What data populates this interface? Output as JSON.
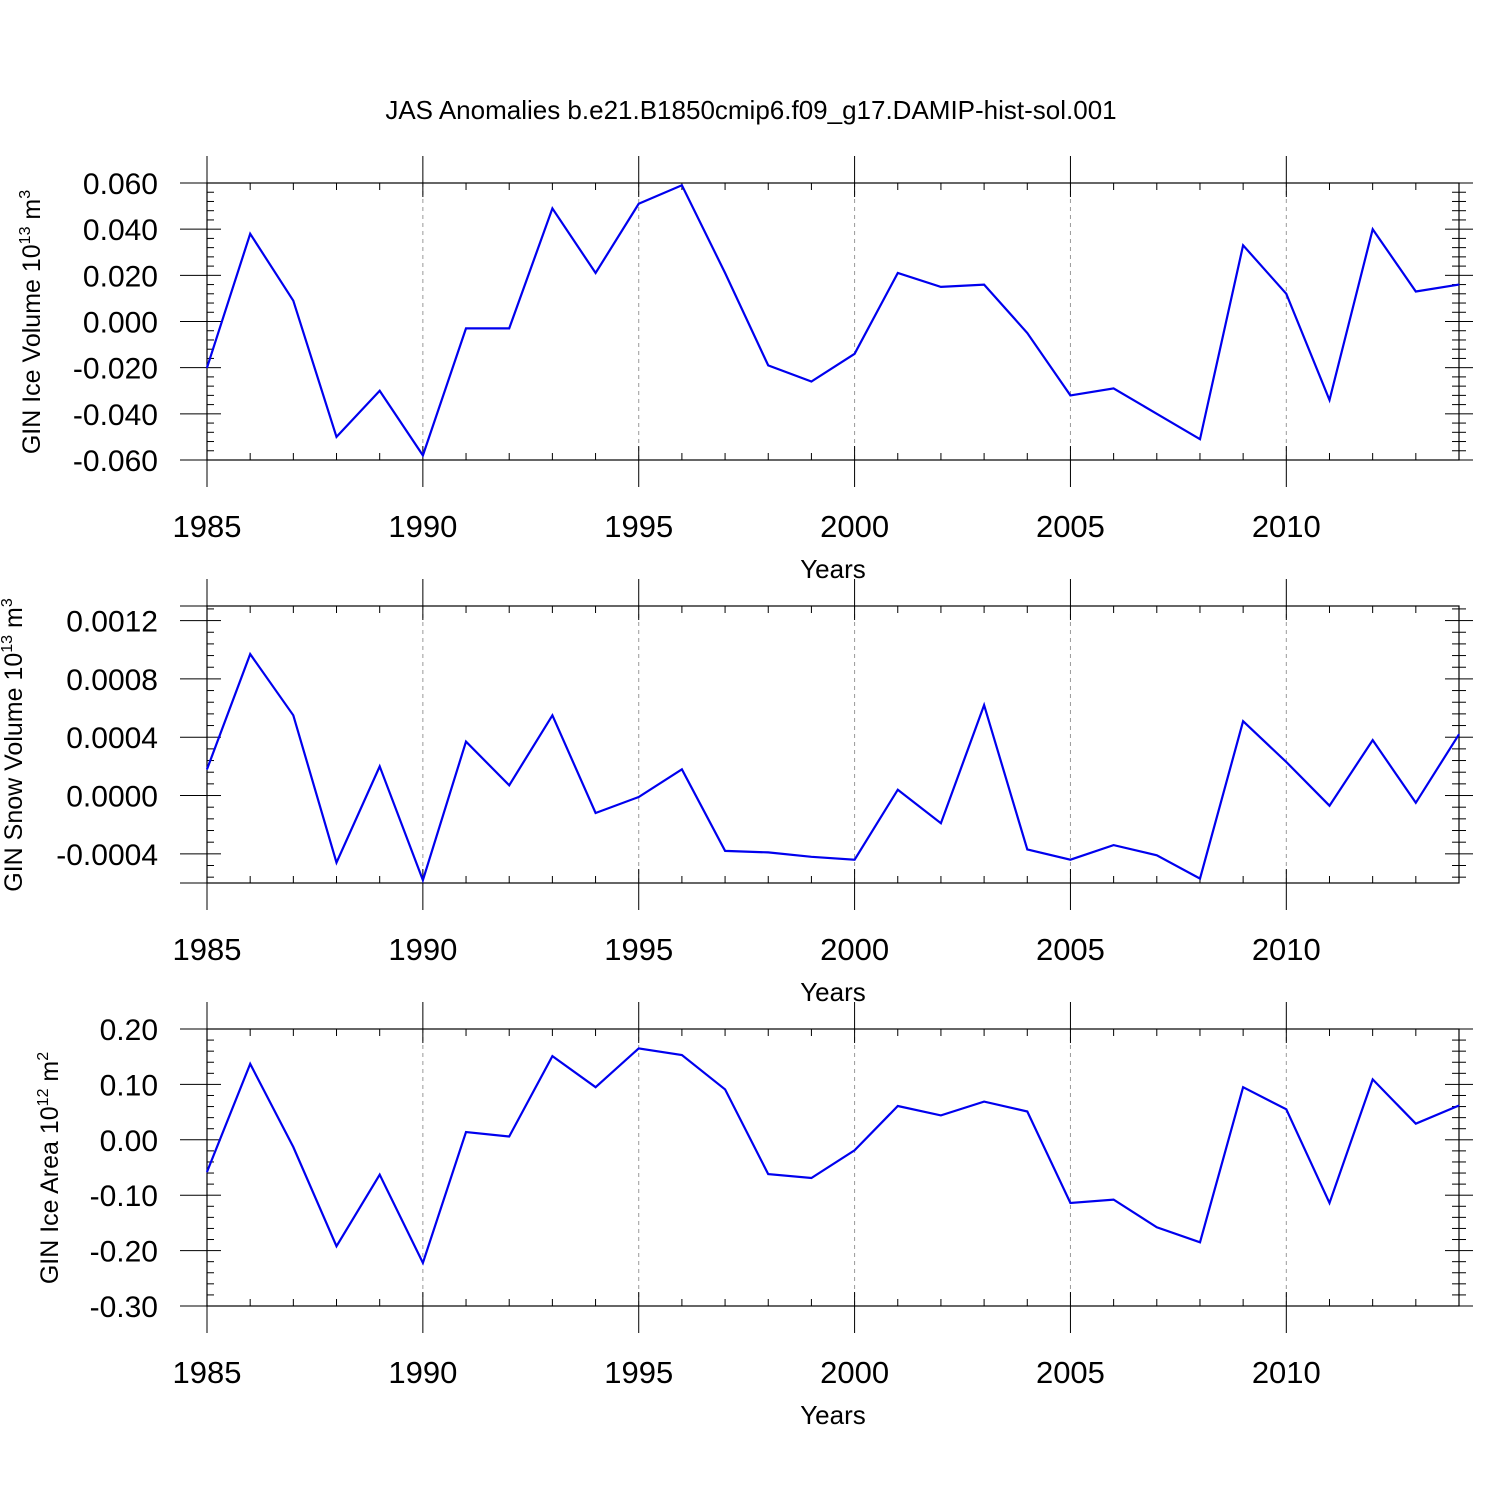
{
  "title": "JAS Anomalies b.e21.B1850cmip6.f09_g17.DAMIP-hist-sol.001",
  "colors": {
    "series": "#0000ee",
    "grid": "#9a9a9a",
    "axis": "#000000"
  },
  "chart_data": [
    {
      "type": "line",
      "title": "JAS Anomalies b.e21.B1850cmip6.f09_g17.DAMIP-hist-sol.001",
      "xlabel": "Years",
      "ylabel": {
        "main": "GIN Ice Volume 10",
        "exp": "13",
        "unit": " m",
        "unit_exp": "3"
      },
      "xlim": [
        1985,
        2014
      ],
      "ylim": [
        -0.06,
        0.06
      ],
      "xticks": [
        1985,
        1990,
        1995,
        2000,
        2005,
        2010
      ],
      "xtick_labels": [
        "1985",
        "1990",
        "1995",
        "2000",
        "2005",
        "2010"
      ],
      "grid_x": [
        1990,
        1995,
        2000,
        2005,
        2010
      ],
      "yticks": [
        0.06,
        0.04,
        0.02,
        0.0,
        -0.02,
        -0.04,
        -0.06
      ],
      "ytick_labels": [
        "0.060",
        "0.040",
        "0.020",
        "0.000",
        "-0.020",
        "-0.040",
        "-0.060"
      ],
      "x": [
        1985,
        1986,
        1987,
        1988,
        1989,
        1990,
        1991,
        1992,
        1993,
        1994,
        1995,
        1996,
        1997,
        1998,
        1999,
        2000,
        2001,
        2002,
        2003,
        2004,
        2005,
        2006,
        2007,
        2008,
        2009,
        2010,
        2011,
        2012,
        2013,
        2014
      ],
      "series": [
        {
          "name": "GIN Ice Volume",
          "values": [
            -0.02,
            0.038,
            0.009,
            -0.05,
            -0.03,
            -0.058,
            -0.003,
            -0.003,
            0.049,
            0.021,
            0.051,
            0.059,
            0.021,
            -0.019,
            -0.026,
            -0.014,
            0.021,
            0.015,
            0.016,
            -0.005,
            -0.032,
            -0.029,
            -0.04,
            -0.051,
            0.033,
            0.012,
            -0.034,
            0.04,
            0.013,
            0.016
          ]
        }
      ]
    },
    {
      "type": "line",
      "title": "",
      "xlabel": "Years",
      "ylabel": {
        "main": "GIN Snow Volume 10",
        "exp": "13",
        "unit": " m",
        "unit_exp": "3"
      },
      "xlim": [
        1985,
        2014
      ],
      "ylim": [
        -0.0006,
        0.0013
      ],
      "xticks": [
        1985,
        1990,
        1995,
        2000,
        2005,
        2010
      ],
      "xtick_labels": [
        "1985",
        "1990",
        "1995",
        "2000",
        "2005",
        "2010"
      ],
      "grid_x": [
        1990,
        1995,
        2000,
        2005,
        2010
      ],
      "yticks": [
        0.0012,
        0.0008,
        0.0004,
        0.0,
        -0.0004
      ],
      "ytick_labels": [
        "0.0012",
        "0.0008",
        "0.0004",
        "0.0000",
        "-0.0004"
      ],
      "x": [
        1985,
        1986,
        1987,
        1988,
        1989,
        1990,
        1991,
        1992,
        1993,
        1994,
        1995,
        1996,
        1997,
        1998,
        1999,
        2000,
        2001,
        2002,
        2003,
        2004,
        2005,
        2006,
        2007,
        2008,
        2009,
        2010,
        2011,
        2012,
        2013,
        2014
      ],
      "series": [
        {
          "name": "GIN Snow Volume",
          "values": [
            0.00018,
            0.00097,
            0.00055,
            -0.00046,
            0.0002,
            -0.00058,
            0.00037,
            7e-05,
            0.00055,
            -0.00012,
            -1e-05,
            0.00018,
            -0.00038,
            -0.00039,
            -0.00042,
            -0.00044,
            4e-05,
            -0.00019,
            0.00062,
            -0.00037,
            -0.00044,
            -0.00034,
            -0.00041,
            -0.00057,
            0.00051,
            0.00023,
            -7e-05,
            0.00038,
            -5e-05,
            0.00042
          ]
        }
      ]
    },
    {
      "type": "line",
      "title": "",
      "xlabel": "Years",
      "ylabel": {
        "main": "GIN Ice Area 10",
        "exp": "12",
        "unit": " m",
        "unit_exp": "2"
      },
      "xlim": [
        1985,
        2014
      ],
      "ylim": [
        -0.3,
        0.2
      ],
      "xticks": [
        1985,
        1990,
        1995,
        2000,
        2005,
        2010
      ],
      "xtick_labels": [
        "1985",
        "1990",
        "1995",
        "2000",
        "2005",
        "2010"
      ],
      "grid_x": [
        1990,
        1995,
        2000,
        2005,
        2010
      ],
      "yticks": [
        0.2,
        0.1,
        0.0,
        -0.1,
        -0.2,
        -0.3
      ],
      "ytick_labels": [
        "0.20",
        "0.10",
        "0.00",
        "-0.10",
        "-0.20",
        "-0.30"
      ],
      "x": [
        1985,
        1986,
        1987,
        1988,
        1989,
        1990,
        1991,
        1992,
        1993,
        1994,
        1995,
        1996,
        1997,
        1998,
        1999,
        2000,
        2001,
        2002,
        2003,
        2004,
        2005,
        2006,
        2007,
        2008,
        2009,
        2010,
        2011,
        2012,
        2013,
        2014
      ],
      "series": [
        {
          "name": "GIN Ice Area",
          "values": [
            -0.058,
            0.137,
            -0.013,
            -0.192,
            -0.063,
            -0.222,
            0.014,
            0.006,
            0.151,
            0.095,
            0.165,
            0.153,
            0.091,
            -0.062,
            -0.069,
            -0.019,
            0.061,
            0.044,
            0.069,
            0.051,
            -0.114,
            -0.108,
            -0.158,
            -0.185,
            0.095,
            0.055,
            -0.114,
            0.109,
            0.029,
            0.062
          ]
        }
      ]
    }
  ]
}
